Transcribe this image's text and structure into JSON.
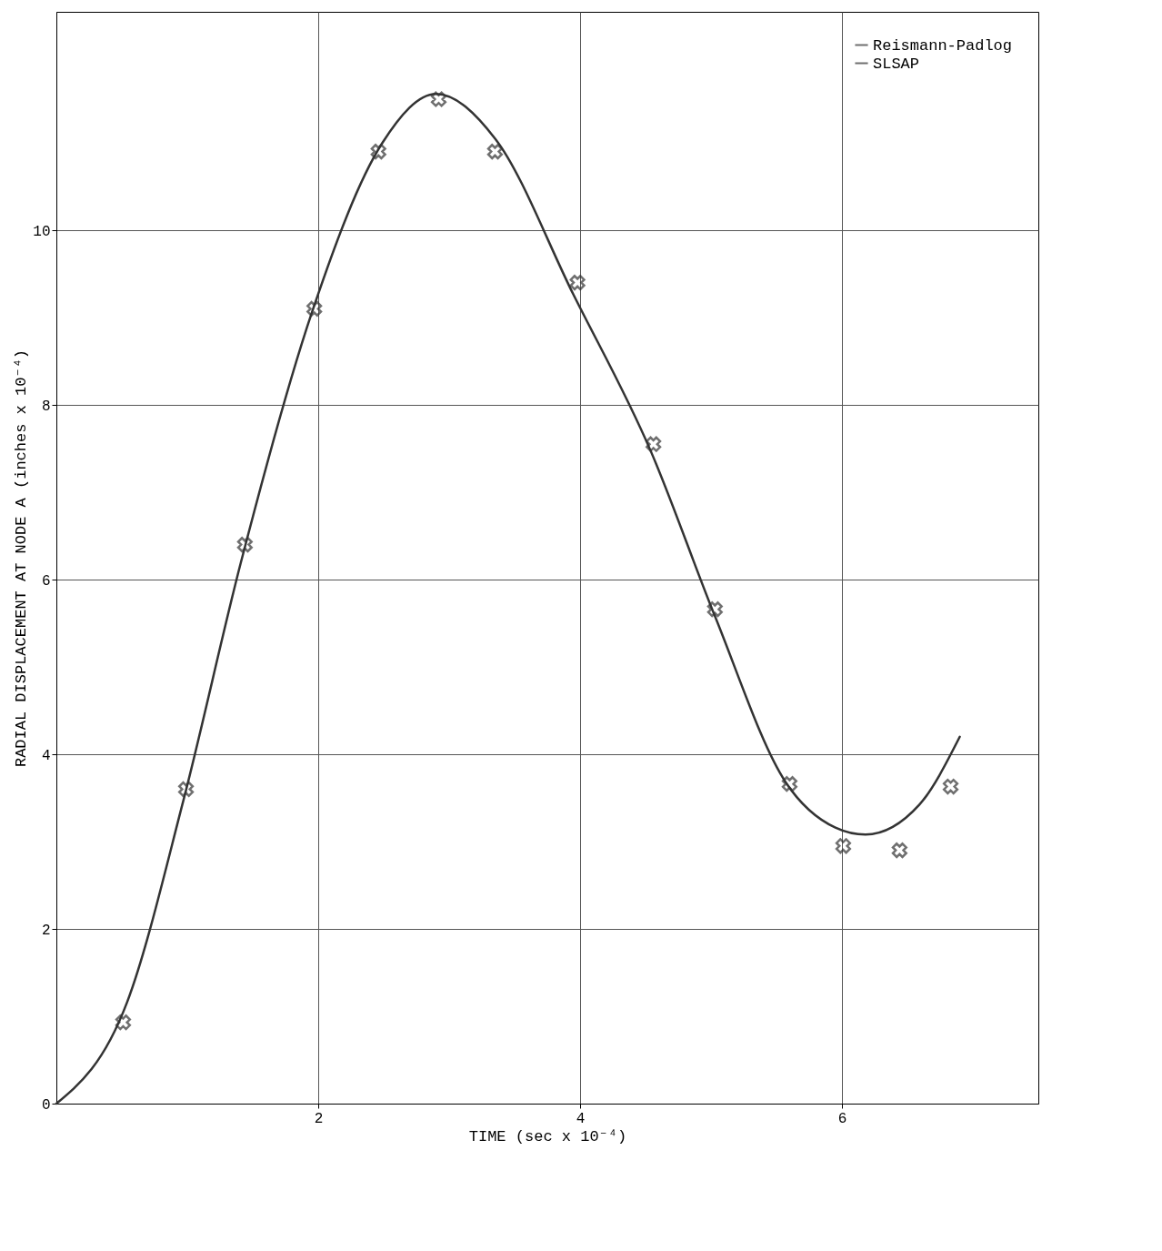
{
  "chart_data": {
    "type": "line",
    "xlabel": "TIME (sec x 10⁻⁴)",
    "ylabel": "RADIAL DISPLACEMENT AT NODE A (inches x 10⁻⁴)",
    "xlim": [
      0,
      7.5
    ],
    "ylim": [
      0,
      12.5
    ],
    "xticks": [
      2,
      4,
      6
    ],
    "yticks": [
      0,
      2,
      4,
      6,
      8,
      10
    ],
    "grid": true,
    "legend": "top right",
    "line_style": "solid",
    "series": [
      {
        "name": "Reismann-Padlog",
        "marker": "none",
        "color": "#333333",
        "x": [
          0,
          0.54,
          0.97,
          1.41,
          1.95,
          2.49,
          2.9,
          3.35,
          3.95,
          4.54,
          5.03,
          5.57,
          5.95,
          6.18,
          6.59,
          6.9
        ],
        "values": [
          0,
          1.16,
          3.47,
          6.2,
          9.05,
          11.0,
          11.56,
          11.05,
          9.26,
          7.47,
          5.58,
          3.68,
          3.16,
          3.08,
          3.42,
          4.2
        ]
      },
      {
        "name": "SLSAP",
        "type": "scatter",
        "marker": "cross",
        "color": "#333333",
        "x": [
          0.51,
          0.99,
          1.44,
          1.97,
          2.46,
          2.92,
          3.35,
          3.98,
          4.56,
          5.03,
          5.6,
          6.01,
          6.44,
          6.83
        ],
        "values": [
          0.93,
          3.6,
          6.4,
          9.1,
          10.9,
          11.5,
          10.9,
          9.4,
          7.55,
          5.66,
          3.66,
          2.95,
          2.9,
          3.63
        ]
      }
    ]
  }
}
